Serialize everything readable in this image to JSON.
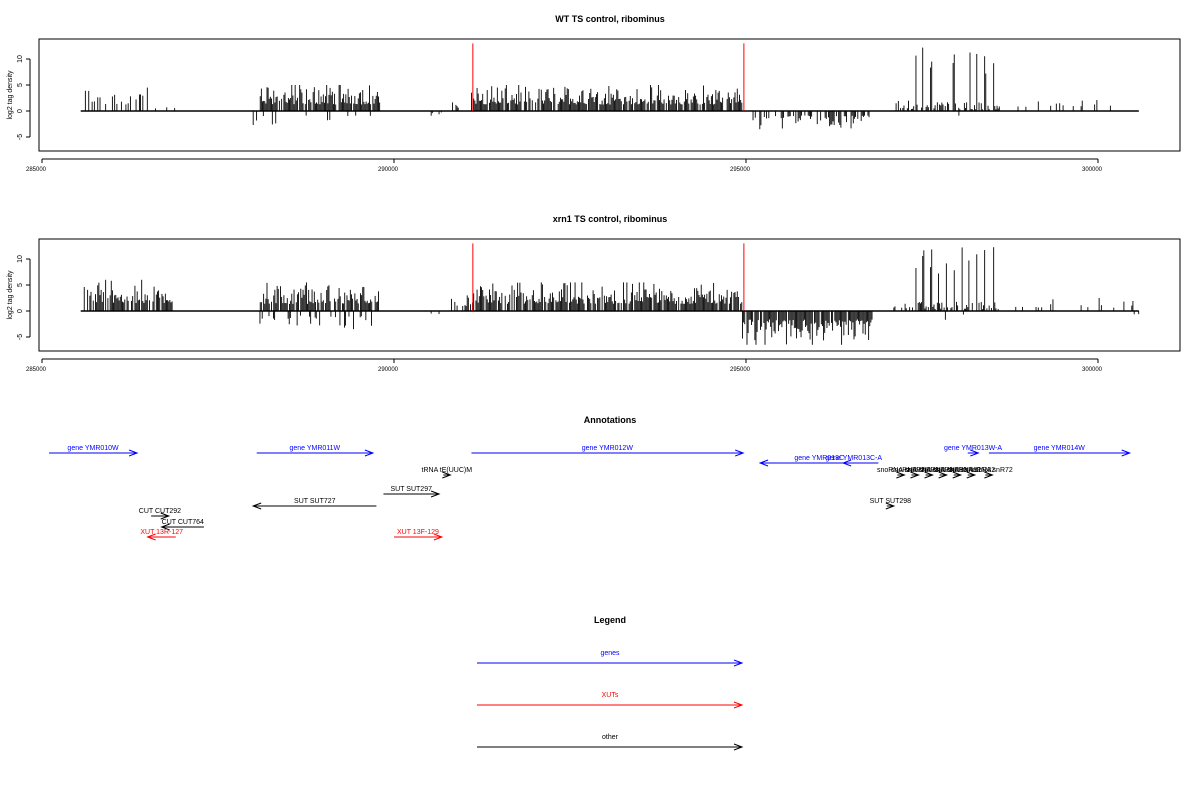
{
  "chart_data": [
    {
      "type": "bar",
      "title": "WT TS control, ribominus",
      "ylabel": "log2 tag density",
      "xlim": [
        285000,
        301200
      ],
      "ylim": [
        -7.5,
        14
      ],
      "xticks": [
        285000,
        290000,
        295000,
        300000
      ],
      "yticks": [
        -5,
        0,
        5,
        10
      ],
      "x_tick_labels": [
        "285000",
        "290000",
        "295000",
        "300000"
      ],
      "y_tick_labels": [
        "-5",
        "0",
        "5",
        "10"
      ],
      "data_range": [
        285550,
        300580
      ],
      "markers": [
        {
          "x": 291120,
          "value": 13,
          "color": "#ff0000"
        },
        {
          "x": 294970,
          "value": 13,
          "color": "#ff0000"
        }
      ],
      "positive_regions": [
        {
          "start": 285600,
          "end": 286500,
          "max": 4.5,
          "density": 0.35
        },
        {
          "start": 286500,
          "end": 286900,
          "max": 1.5,
          "density": 0.1
        },
        {
          "start": 288100,
          "end": 289800,
          "max": 5,
          "density": 0.8
        },
        {
          "start": 290100,
          "end": 290300,
          "max": 2.5,
          "density": 0.1
        },
        {
          "start": 290800,
          "end": 291100,
          "max": 2.5,
          "density": 0.2
        },
        {
          "start": 291100,
          "end": 294950,
          "max": 5,
          "density": 0.85
        },
        {
          "start": 297100,
          "end": 297350,
          "max": 2,
          "density": 0.4
        },
        {
          "start": 297350,
          "end": 298600,
          "max": 12.5,
          "density": 0.6,
          "peaks": true
        },
        {
          "start": 298800,
          "end": 300550,
          "max": 3,
          "density": 0.15
        }
      ],
      "negative_regions": [
        {
          "start": 288000,
          "end": 289800,
          "max": 3.5,
          "density": 0.12
        },
        {
          "start": 290400,
          "end": 290700,
          "max": 1,
          "density": 0.1
        },
        {
          "start": 295100,
          "end": 296800,
          "max": 3.5,
          "density": 0.55
        },
        {
          "start": 297800,
          "end": 298100,
          "max": 3,
          "density": 0.1
        }
      ]
    },
    {
      "type": "bar",
      "title": "xrn1 TS control, ribominus",
      "ylabel": "log2 tag density",
      "xlim": [
        285000,
        301200
      ],
      "ylim": [
        -7.5,
        14
      ],
      "xticks": [
        285000,
        290000,
        295000,
        300000
      ],
      "yticks": [
        -5,
        0,
        5,
        10
      ],
      "x_tick_labels": [
        "285000",
        "290000",
        "295000",
        "300000"
      ],
      "y_tick_labels": [
        "-5",
        "0",
        "5",
        "10"
      ],
      "data_range": [
        285550,
        300580
      ],
      "markers": [
        {
          "x": 291120,
          "value": 13,
          "color": "#ff0000"
        },
        {
          "x": 294970,
          "value": 13,
          "color": "#ff0000"
        }
      ],
      "positive_regions": [
        {
          "start": 285600,
          "end": 286850,
          "max": 6,
          "density": 0.8
        },
        {
          "start": 288100,
          "end": 289800,
          "max": 5.5,
          "density": 0.85
        },
        {
          "start": 290100,
          "end": 290400,
          "max": 1.5,
          "density": 0.1
        },
        {
          "start": 290800,
          "end": 291100,
          "max": 3,
          "density": 0.3
        },
        {
          "start": 291100,
          "end": 294950,
          "max": 5.5,
          "density": 0.9
        },
        {
          "start": 297100,
          "end": 297350,
          "max": 2,
          "density": 0.4
        },
        {
          "start": 297350,
          "end": 298600,
          "max": 12.5,
          "density": 0.6,
          "peaks": true
        },
        {
          "start": 298800,
          "end": 300550,
          "max": 2.5,
          "density": 0.15
        }
      ],
      "negative_regions": [
        {
          "start": 288000,
          "end": 289800,
          "max": 3.5,
          "density": 0.2
        },
        {
          "start": 290400,
          "end": 290700,
          "max": 1.5,
          "density": 0.1
        },
        {
          "start": 294950,
          "end": 296800,
          "max": 6.5,
          "density": 0.9
        },
        {
          "start": 297800,
          "end": 298100,
          "max": 2.5,
          "density": 0.1
        },
        {
          "start": 300450,
          "end": 300580,
          "max": 2,
          "density": 0.3
        }
      ]
    }
  ],
  "annotations": {
    "title": "Annotations",
    "features": [
      {
        "label": "gene YMR010W",
        "start": 285100,
        "end": 286350,
        "row": 0,
        "strand": "+",
        "type": "gene"
      },
      {
        "label": "gene YMR011W",
        "start": 288050,
        "end": 289700,
        "row": 0,
        "strand": "+",
        "type": "gene"
      },
      {
        "label": "gene YMR012W",
        "start": 291100,
        "end": 294960,
        "row": 0,
        "strand": "+",
        "type": "gene"
      },
      {
        "label": "gene YMR013C",
        "start": 295200,
        "end": 296880,
        "row": 1,
        "strand": "-",
        "type": "gene"
      },
      {
        "label": "gene YMR013C-A",
        "start": 296380,
        "end": 296680,
        "row": 1,
        "strand": "-",
        "type": "gene"
      },
      {
        "label": "gene YMR013W-A",
        "start": 298150,
        "end": 298300,
        "row": 0,
        "strand": "+",
        "type": "gene"
      },
      {
        "label": "gene YMR014W",
        "start": 298450,
        "end": 300450,
        "row": 0,
        "strand": "+",
        "type": "gene"
      },
      {
        "label": "tRNA tE(UUC)M",
        "start": 290700,
        "end": 290800,
        "row": 2,
        "strand": "+",
        "type": "other"
      },
      {
        "label": "snoRNA snR77",
        "start": 297150,
        "end": 297250,
        "row": 2,
        "strand": "+",
        "type": "other"
      },
      {
        "label": "snoRNA snR78",
        "start": 297350,
        "end": 297450,
        "row": 2,
        "strand": "+",
        "type": "other"
      },
      {
        "label": "snoRNA snR79",
        "start": 297550,
        "end": 297650,
        "row": 2,
        "strand": "+",
        "type": "other"
      },
      {
        "label": "snoRNA snR80",
        "start": 297750,
        "end": 297850,
        "row": 2,
        "strand": "+",
        "type": "other"
      },
      {
        "label": "snoRNA snR81",
        "start": 297950,
        "end": 298050,
        "row": 2,
        "strand": "+",
        "type": "other"
      },
      {
        "label": "snoRNA snR82",
        "start": 298150,
        "end": 298250,
        "row": 2,
        "strand": "+",
        "type": "other"
      },
      {
        "label": "snoRNA snR72",
        "start": 298400,
        "end": 298500,
        "row": 2,
        "strand": "+",
        "type": "other"
      },
      {
        "label": "SUT SUT297",
        "start": 289850,
        "end": 290640,
        "row": 3,
        "strand": "+",
        "type": "other"
      },
      {
        "label": "SUT SUT298",
        "start": 297000,
        "end": 297100,
        "row": 4,
        "strand": "+",
        "type": "other"
      },
      {
        "label": "SUT SUT727",
        "start": 288000,
        "end": 289750,
        "row": 4,
        "strand": "-",
        "type": "other"
      },
      {
        "label": "CUT CUT292",
        "start": 286550,
        "end": 286800,
        "row": 5,
        "strand": "+",
        "type": "other"
      },
      {
        "label": "CUT CUT764",
        "start": 286700,
        "end": 287300,
        "row": 6,
        "strand": "-",
        "type": "other"
      },
      {
        "label": "XUT 13R-127",
        "start": 286500,
        "end": 286900,
        "row": 7,
        "strand": "-",
        "type": "xut"
      },
      {
        "label": "XUT 13F-129",
        "start": 290000,
        "end": 290680,
        "row": 7,
        "strand": "+",
        "type": "xut"
      }
    ]
  },
  "legend": {
    "title": "Legend",
    "items": [
      {
        "label": "genes",
        "color": "#0000ff"
      },
      {
        "label": "XUTs",
        "color": "#ff0000"
      },
      {
        "label": "other",
        "color": "#000000"
      }
    ]
  },
  "colors": {
    "gene": "#0000ff",
    "xut": "#ff0000",
    "other": "#000000",
    "axis": "#000000",
    "marker": "#ff0000"
  }
}
